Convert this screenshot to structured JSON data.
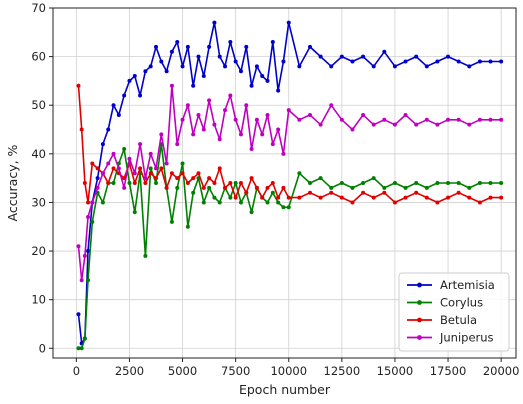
{
  "chart_data": {
    "type": "line",
    "xlabel": "Epoch number",
    "ylabel": "Accuracy, %",
    "xlim": [
      -1100,
      20700
    ],
    "ylim": [
      -2,
      70
    ],
    "xticks": [
      0,
      2500,
      5000,
      7500,
      10000,
      12500,
      15000,
      17500,
      20000
    ],
    "yticks": [
      0,
      10,
      20,
      30,
      40,
      50,
      60,
      70
    ],
    "grid": true,
    "legend_position": "lower-right",
    "series": [
      {
        "name": "Artemisia",
        "color": "#0000cc",
        "x": [
          100,
          250,
          400,
          550,
          750,
          1000,
          1250,
          1500,
          1750,
          2000,
          2250,
          2500,
          2750,
          3000,
          3250,
          3500,
          3750,
          4000,
          4250,
          4500,
          4750,
          5000,
          5250,
          5500,
          5750,
          6000,
          6250,
          6500,
          6750,
          7000,
          7250,
          7500,
          7750,
          8000,
          8250,
          8500,
          8750,
          9000,
          9250,
          9500,
          9750,
          10000,
          10500,
          11000,
          11500,
          12000,
          12500,
          13000,
          13500,
          14000,
          14500,
          15000,
          15500,
          16000,
          16500,
          17000,
          17500,
          18000,
          18500,
          19000,
          19500,
          20000
        ],
        "values": [
          7,
          1,
          2,
          20,
          30,
          35,
          42,
          45,
          50,
          48,
          52,
          55,
          56,
          52,
          57,
          58,
          62,
          59,
          57,
          61,
          63,
          58,
          62,
          54,
          60,
          56,
          62,
          67,
          60,
          58,
          63,
          59,
          57,
          62,
          54,
          58,
          56,
          55,
          63,
          53,
          59,
          67,
          58,
          62,
          60,
          58,
          60,
          59,
          60,
          58,
          61,
          58,
          59,
          60,
          58,
          59,
          60,
          59,
          58,
          59,
          59,
          59
        ]
      },
      {
        "name": "Corylus",
        "color": "#008000",
        "x": [
          100,
          250,
          400,
          550,
          750,
          1000,
          1250,
          1500,
          1750,
          2000,
          2250,
          2500,
          2750,
          3000,
          3250,
          3500,
          3750,
          4000,
          4250,
          4500,
          4750,
          5000,
          5250,
          5500,
          5750,
          6000,
          6250,
          6500,
          6750,
          7000,
          7250,
          7500,
          7750,
          8000,
          8250,
          8500,
          8750,
          9000,
          9250,
          9500,
          9750,
          10000,
          10500,
          11000,
          11500,
          12000,
          12500,
          13000,
          13500,
          14000,
          14500,
          15000,
          15500,
          16000,
          16500,
          17000,
          17500,
          18000,
          18500,
          19000,
          19500,
          20000
        ],
        "values": [
          0,
          0,
          2,
          14,
          26,
          32,
          30,
          34,
          34,
          38,
          41,
          34,
          28,
          36,
          19,
          37,
          34,
          42,
          33,
          26,
          33,
          38,
          25,
          32,
          35,
          30,
          33,
          31,
          30,
          33,
          31,
          34,
          30,
          32,
          28,
          33,
          31,
          30,
          32,
          30,
          29,
          29,
          36,
          34,
          35,
          33,
          34,
          33,
          34,
          35,
          33,
          34,
          33,
          34,
          33,
          34,
          34,
          34,
          33,
          34,
          34,
          34
        ]
      },
      {
        "name": "Betula",
        "color": "#e00000",
        "x": [
          100,
          250,
          400,
          550,
          750,
          1000,
          1250,
          1500,
          1750,
          2000,
          2250,
          2500,
          2750,
          3000,
          3250,
          3500,
          3750,
          4000,
          4250,
          4500,
          4750,
          5000,
          5250,
          5500,
          5750,
          6000,
          6250,
          6500,
          6750,
          7000,
          7250,
          7500,
          7750,
          8000,
          8250,
          8500,
          8750,
          9000,
          9250,
          9500,
          9750,
          10000,
          10500,
          11000,
          11500,
          12000,
          12500,
          13000,
          13500,
          14000,
          14500,
          15000,
          15500,
          16000,
          16500,
          17000,
          17500,
          18000,
          18500,
          19000,
          19500,
          20000
        ],
        "values": [
          54,
          45,
          34,
          30,
          38,
          37,
          36,
          34,
          37,
          36,
          35,
          38,
          34,
          37,
          34,
          36,
          35,
          37,
          33,
          36,
          35,
          36,
          34,
          35,
          36,
          33,
          35,
          34,
          37,
          33,
          34,
          31,
          34,
          32,
          35,
          33,
          31,
          33,
          34,
          31,
          33,
          31,
          31,
          32,
          31,
          32,
          31,
          30,
          32,
          31,
          32,
          30,
          31,
          32,
          31,
          30,
          31,
          32,
          31,
          30,
          31,
          31
        ]
      },
      {
        "name": "Juniperus",
        "color": "#c000c0",
        "x": [
          100,
          250,
          400,
          550,
          750,
          1000,
          1250,
          1500,
          1750,
          2000,
          2250,
          2500,
          2750,
          3000,
          3250,
          3500,
          3750,
          4000,
          4250,
          4500,
          4750,
          5000,
          5250,
          5500,
          5750,
          6000,
          6250,
          6500,
          6750,
          7000,
          7250,
          7500,
          7750,
          8000,
          8250,
          8500,
          8750,
          9000,
          9250,
          9500,
          9750,
          10000,
          10500,
          11000,
          11500,
          12000,
          12500,
          13000,
          13500,
          14000,
          14500,
          15000,
          15500,
          16000,
          16500,
          17000,
          17500,
          18000,
          18500,
          19000,
          19500,
          20000
        ],
        "values": [
          21,
          14,
          19,
          27,
          30,
          33,
          36,
          38,
          40,
          37,
          33,
          39,
          36,
          42,
          35,
          40,
          37,
          44,
          38,
          54,
          42,
          47,
          50,
          44,
          48,
          45,
          51,
          46,
          43,
          49,
          52,
          47,
          44,
          50,
          41,
          47,
          44,
          48,
          42,
          45,
          40,
          49,
          47,
          48,
          46,
          50,
          47,
          45,
          48,
          46,
          47,
          46,
          48,
          46,
          47,
          46,
          47,
          47,
          46,
          47,
          47,
          47
        ]
      }
    ]
  }
}
